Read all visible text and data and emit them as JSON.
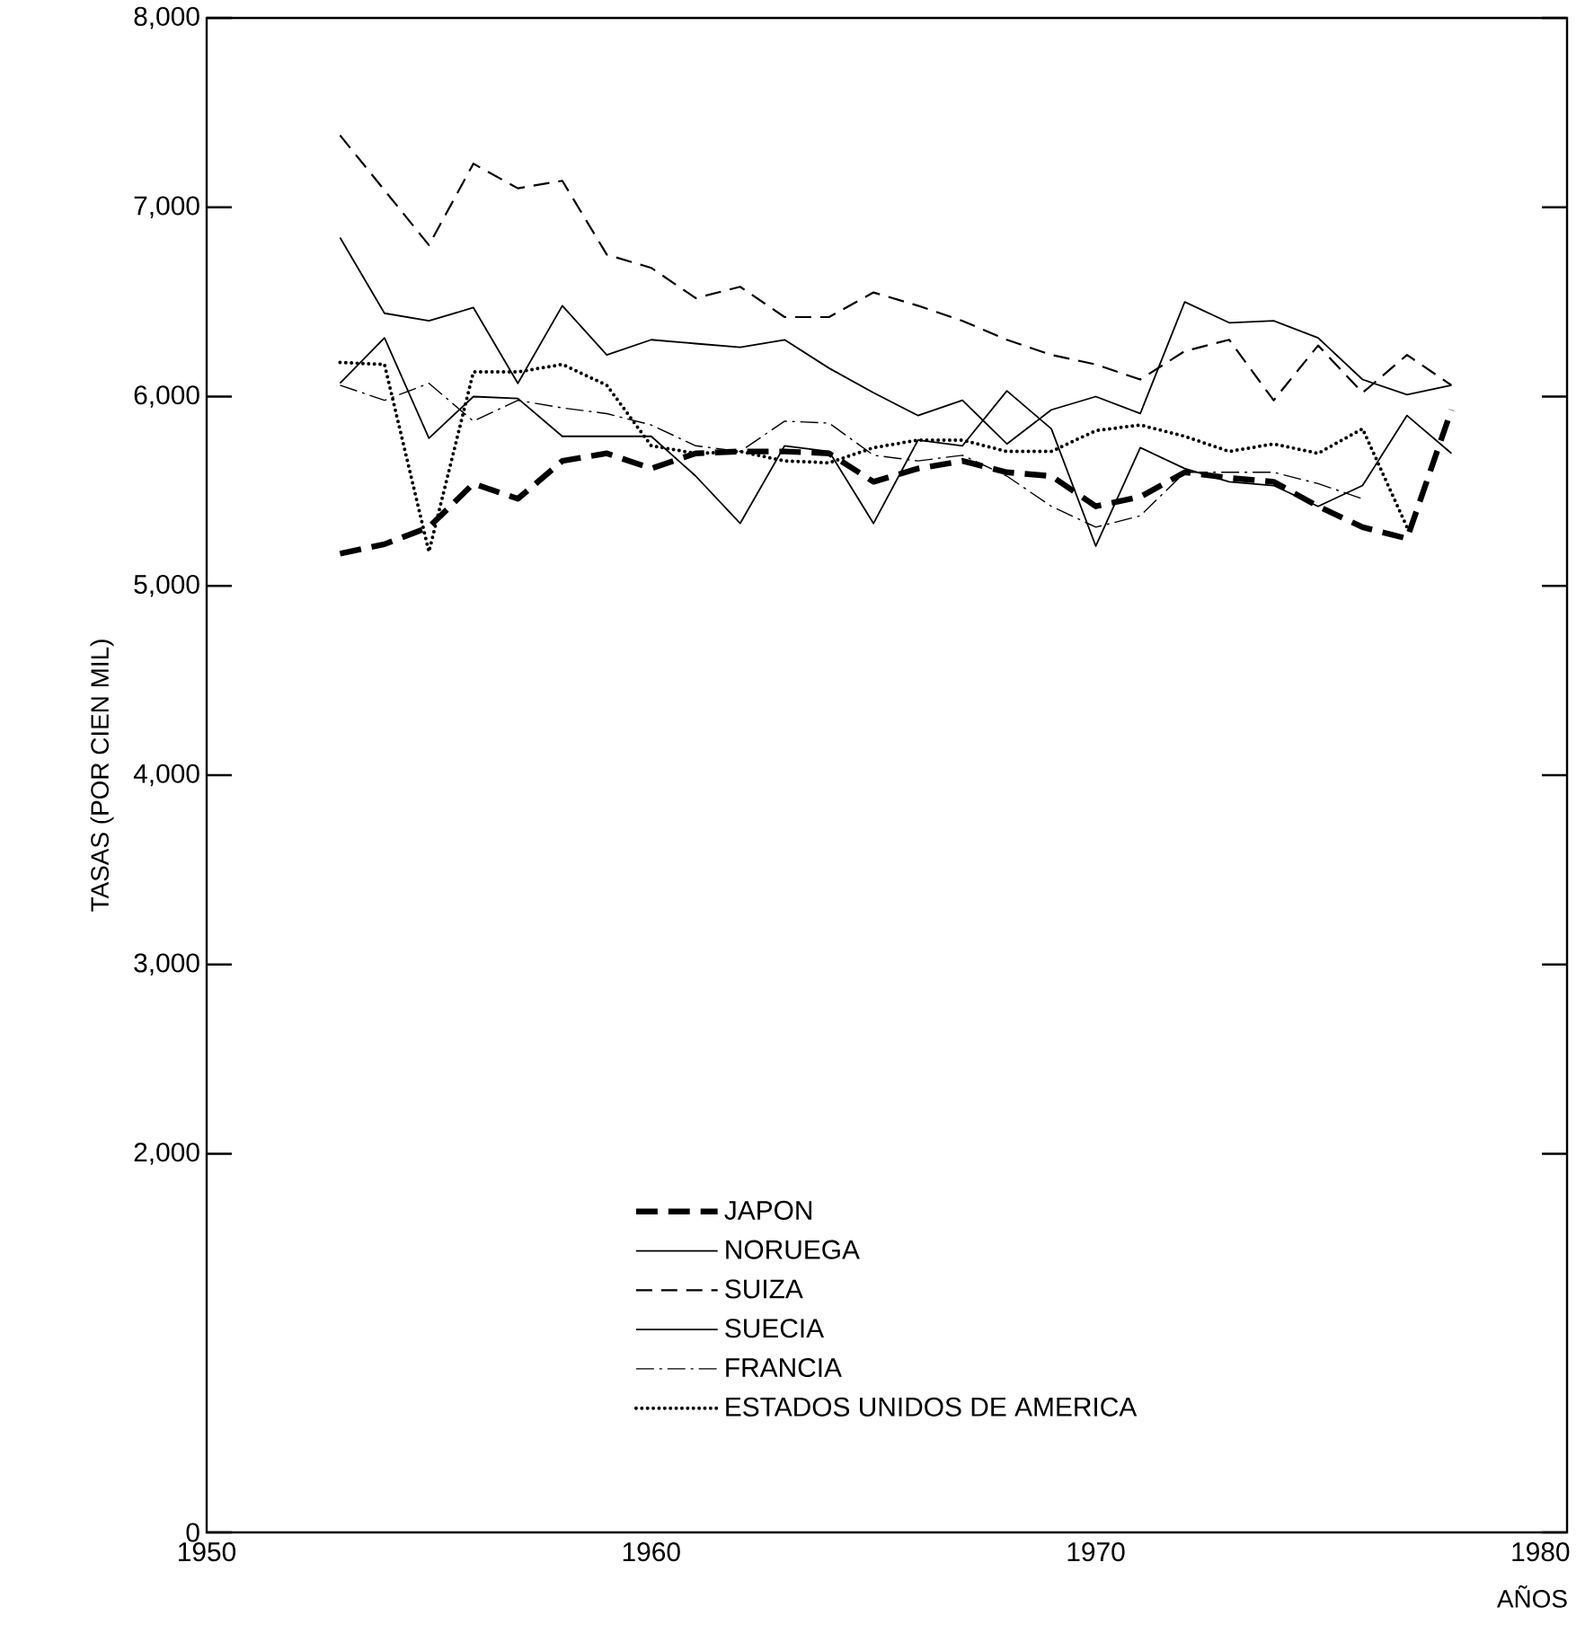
{
  "chart_data": {
    "type": "line",
    "ylabel": "TASAS (POR CIEN MIL)",
    "xlabel": "AÑOS",
    "x": [
      1953,
      1954,
      1955,
      1956,
      1957,
      1958,
      1959,
      1960,
      1961,
      1962,
      1963,
      1964,
      1965,
      1966,
      1967,
      1968,
      1969,
      1970,
      1971,
      1972,
      1973,
      1974,
      1975,
      1976,
      1977,
      1978
    ],
    "series": [
      {
        "name": "JAPON",
        "color": "#000000",
        "line_style": "dashed-bold",
        "values": [
          5170,
          5220,
          5310,
          5540,
          5460,
          5660,
          5700,
          5620,
          5700,
          5710,
          5710,
          5700,
          5550,
          5620,
          5660,
          5600,
          5580,
          5420,
          5470,
          5600,
          5570,
          5550,
          5420,
          5310,
          5250,
          5930
        ]
      },
      {
        "name": "NORUEGA",
        "color": "#000000",
        "line_style": "solid",
        "values": [
          6070,
          6310,
          5780,
          6000,
          5990,
          5790,
          5790,
          5790,
          5580,
          5330,
          5740,
          5710,
          5330,
          5770,
          5740,
          6030,
          5830,
          5210,
          5730,
          5620,
          5550,
          5530,
          5420,
          5530,
          5900,
          5700
        ]
      },
      {
        "name": "SUIZA",
        "color": "#000000",
        "line_style": "dashed",
        "values": [
          7380,
          7090,
          6800,
          7230,
          7100,
          7140,
          6750,
          6680,
          6520,
          6580,
          6420,
          6420,
          6550,
          6480,
          6400,
          6300,
          6220,
          6170,
          6090,
          6240,
          6300,
          5980,
          6270,
          6020,
          6220,
          6060
        ]
      },
      {
        "name": "SUECIA",
        "color": "#000000",
        "line_style": "solid",
        "values": [
          6840,
          6440,
          6400,
          6470,
          6070,
          6480,
          6220,
          6300,
          6280,
          6260,
          6300,
          6150,
          6020,
          5900,
          5980,
          5750,
          5930,
          6000,
          5910,
          6500,
          6390,
          6400,
          6310,
          6090,
          6010,
          6060
        ]
      },
      {
        "name": "FRANCIA",
        "color": "#000000",
        "line_style": "dashdotted",
        "values": [
          6060,
          5980,
          6070,
          5870,
          5980,
          5940,
          5910,
          5850,
          5740,
          5710,
          5870,
          5860,
          5690,
          5660,
          5690,
          5580,
          5420,
          5310,
          5370,
          5600,
          5600,
          5600,
          5540,
          5460,
          null,
          null
        ]
      },
      {
        "name": "ESTADOS UNIDOS DE AMERICA",
        "color": "#000000",
        "line_style": "dotted",
        "values": [
          6180,
          6170,
          5180,
          6130,
          6130,
          6170,
          6060,
          5740,
          5700,
          5710,
          5660,
          5650,
          5730,
          5770,
          5770,
          5710,
          5710,
          5820,
          5850,
          5790,
          5710,
          5750,
          5700,
          5830,
          5310,
          null
        ]
      }
    ],
    "xlim": [
      1950,
      1980.6
    ],
    "xticks": [
      1950,
      1960,
      1970,
      1980
    ],
    "ylim": [
      0,
      8000
    ],
    "yticks": [
      {
        "value": 0,
        "label": "0"
      },
      {
        "value": 2000,
        "label": "2,000"
      },
      {
        "value": 3000,
        "label": "3,000"
      },
      {
        "value": 4000,
        "label": "4,000"
      },
      {
        "value": 5000,
        "label": "5,000"
      },
      {
        "value": 6000,
        "label": "6,000"
      },
      {
        "value": 7000,
        "label": "7,000"
      },
      {
        "value": 8000,
        "label": "8,000"
      }
    ],
    "legend": "bottom",
    "grid": false,
    "marker": "none"
  }
}
